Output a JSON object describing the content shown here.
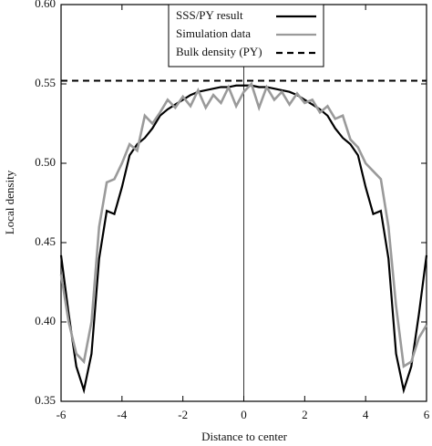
{
  "chart_data": {
    "type": "line",
    "xlabel": "Distance to center",
    "ylabel": "Local density",
    "xlim": [
      -6,
      6
    ],
    "ylim": [
      0.35,
      0.6
    ],
    "xticks": [
      -6,
      -4,
      -2,
      0,
      2,
      4,
      6
    ],
    "yticks": [
      0.35,
      {
        "value": 0.4,
        "label": "0.40"
      },
      0.45,
      {
        "value": 0.5,
        "label": "0.50"
      },
      0.55,
      {
        "value": 0.6,
        "label": "0.60"
      }
    ],
    "vline": 0,
    "legend": "top-center",
    "x": [
      -6,
      -5.75,
      -5.5,
      -5.25,
      -5,
      -4.75,
      -4.5,
      -4.25,
      -4,
      -3.75,
      -3.5,
      -3.25,
      -3,
      -2.75,
      -2.5,
      -2.25,
      -2,
      -1.75,
      -1.5,
      -1.25,
      -1,
      -0.75,
      -0.5,
      -0.25,
      0,
      0.25,
      0.5,
      0.75,
      1,
      1.25,
      1.5,
      1.75,
      2,
      2.25,
      2.5,
      2.75,
      3,
      3.25,
      3.5,
      3.75,
      4,
      4.25,
      4.5,
      4.75,
      5,
      5.25,
      5.5,
      5.75,
      6
    ],
    "series": [
      {
        "name": "SSS/PY result",
        "color": "#000000",
        "style": "solid",
        "values": [
          0.442,
          0.405,
          0.372,
          0.357,
          0.38,
          0.44,
          0.47,
          0.468,
          0.485,
          0.505,
          0.512,
          0.516,
          0.522,
          0.53,
          0.534,
          0.537,
          0.54,
          0.543,
          0.545,
          0.546,
          0.547,
          0.548,
          0.548,
          0.549,
          0.549,
          0.549,
          0.548,
          0.548,
          0.547,
          0.546,
          0.545,
          0.543,
          0.54,
          0.537,
          0.534,
          0.53,
          0.522,
          0.516,
          0.512,
          0.505,
          0.485,
          0.468,
          0.47,
          0.44,
          0.38,
          0.357,
          0.372,
          0.405,
          0.442
        ]
      },
      {
        "name": "Simulation data",
        "color": "#9a9a9a",
        "style": "solid",
        "values": [
          0.43,
          0.4,
          0.38,
          0.375,
          0.4,
          0.46,
          0.488,
          0.49,
          0.5,
          0.512,
          0.508,
          0.53,
          0.525,
          0.532,
          0.54,
          0.535,
          0.542,
          0.536,
          0.546,
          0.535,
          0.543,
          0.538,
          0.548,
          0.536,
          0.545,
          0.55,
          0.535,
          0.548,
          0.54,
          0.545,
          0.537,
          0.544,
          0.538,
          0.54,
          0.532,
          0.536,
          0.528,
          0.53,
          0.515,
          0.51,
          0.5,
          0.495,
          0.49,
          0.46,
          0.41,
          0.372,
          0.375,
          0.39,
          0.398
        ]
      },
      {
        "name": "Bulk density (PY)",
        "color": "#000000",
        "style": "dashed",
        "x": [
          -6,
          6
        ],
        "values": [
          0.552,
          0.552
        ]
      }
    ]
  }
}
